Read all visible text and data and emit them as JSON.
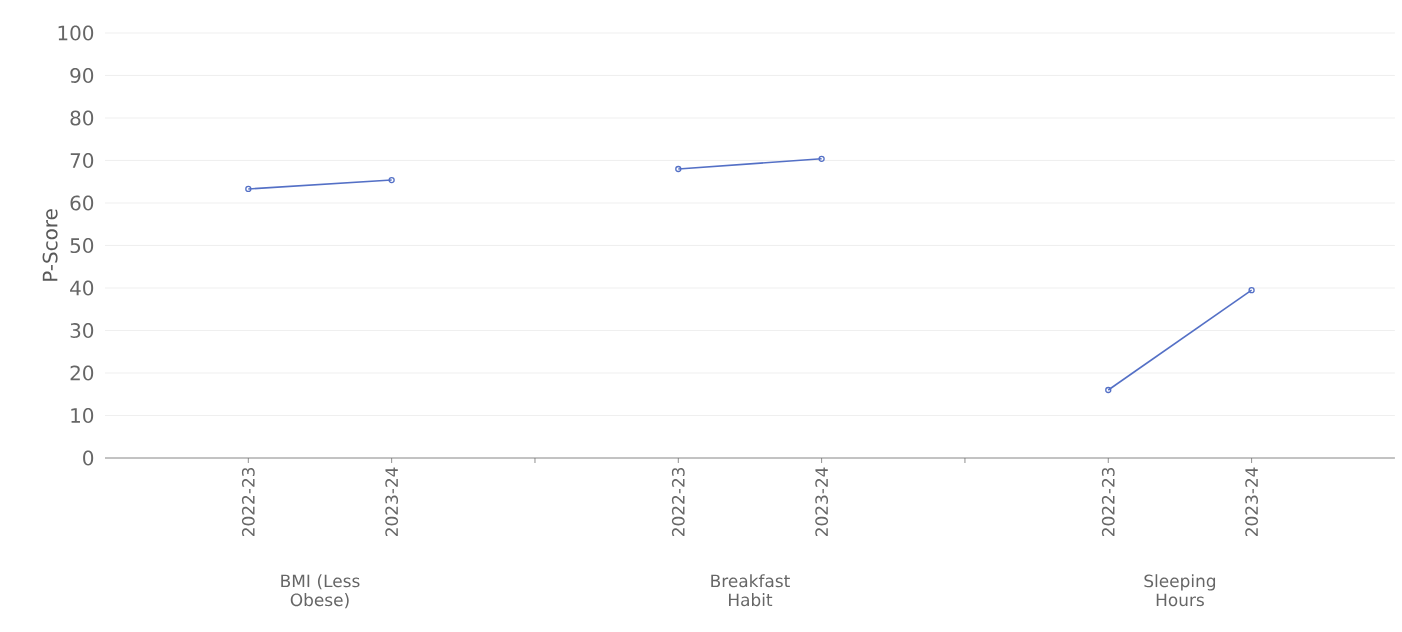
{
  "chart_data": {
    "type": "line",
    "ylabel": "P-Score",
    "categories": [
      "2022-23",
      "2023-24",
      "2022-23",
      "2023-24",
      "2022-23",
      "2023-24"
    ],
    "annotations": [
      "BMI (Less Obese)",
      "Breakfast Habit",
      "Sleeping Hours"
    ],
    "series": [
      {
        "color": "#5470c6",
        "values": [
          63.3,
          65.4,
          null,
          null,
          null,
          null
        ]
      },
      {
        "color": "#5470c6",
        "values": [
          null,
          null,
          68.0,
          70.4,
          null,
          null
        ]
      },
      {
        "color": "#5470c6",
        "values": [
          null,
          null,
          null,
          null,
          16.0,
          39.5
        ]
      }
    ],
    "ylim": [
      0,
      100
    ],
    "yticks": [
      0,
      10,
      20,
      30,
      40,
      50,
      60,
      70,
      80,
      90,
      100
    ],
    "grid": "y",
    "marker": "circle",
    "line_style": "solid"
  }
}
